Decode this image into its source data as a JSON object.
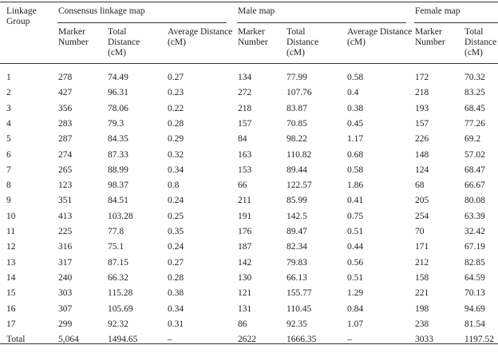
{
  "table": {
    "header": {
      "row_label": "Linkage Group",
      "groups": [
        "Consensus linkage map",
        "Male map",
        "Female map"
      ],
      "columns": [
        "Marker Number",
        "Total Distance (cM)",
        "Average Distance (cM)",
        "Marker Number",
        "Total Distance (cM)",
        "Average Distance (cM)",
        "Marker Number",
        "Total Distance (cM)"
      ]
    },
    "rows": [
      [
        "1",
        "278",
        "74.49",
        "0.27",
        "134",
        "77.99",
        "0.58",
        "172",
        "70.32"
      ],
      [
        "2",
        "427",
        "96.31",
        "0.23",
        "272",
        "107.76",
        "0.4",
        "218",
        "83.25"
      ],
      [
        "3",
        "356",
        "78.06",
        "0.22",
        "218",
        "83.87",
        "0.38",
        "193",
        "68.45"
      ],
      [
        "4",
        "283",
        "79.3",
        "0.28",
        "157",
        "70.85",
        "0.45",
        "157",
        "77.26"
      ],
      [
        "5",
        "287",
        "84.35",
        "0.29",
        "84",
        "98.22",
        "1.17",
        "226",
        "69.2"
      ],
      [
        "6",
        "274",
        "87.33",
        "0.32",
        "163",
        "110.82",
        "0.68",
        "148",
        "57.02"
      ],
      [
        "7",
        "265",
        "88.99",
        "0.34",
        "153",
        "89.44",
        "0.58",
        "124",
        "68.47"
      ],
      [
        "8",
        "123",
        "98.37",
        "0.8",
        "66",
        "122.57",
        "1.86",
        "68",
        "66.67"
      ],
      [
        "9",
        "351",
        "84.51",
        "0.24",
        "211",
        "85.99",
        "0.41",
        "205",
        "80.08"
      ],
      [
        "10",
        "413",
        "103.28",
        "0.25",
        "191",
        "142.5",
        "0.75",
        "254",
        "63.39"
      ],
      [
        "11",
        "225",
        "77.8",
        "0.35",
        "176",
        "89.47",
        "0.51",
        "70",
        "32.42"
      ],
      [
        "12",
        "316",
        "75.1",
        "0.24",
        "187",
        "82.34",
        "0.44",
        "171",
        "67.19"
      ],
      [
        "13",
        "317",
        "87.15",
        "0.27",
        "142",
        "79.83",
        "0.56",
        "212",
        "82.85"
      ],
      [
        "14",
        "240",
        "66.32",
        "0.28",
        "130",
        "66.13",
        "0.51",
        "158",
        "64.59"
      ],
      [
        "15",
        "303",
        "115.28",
        "0.38",
        "121",
        "155.77",
        "1.29",
        "221",
        "70.13"
      ],
      [
        "16",
        "307",
        "105.69",
        "0.34",
        "131",
        "110.45",
        "0.84",
        "198",
        "94.69"
      ],
      [
        "17",
        "299",
        "92.32",
        "0.31",
        "86",
        "92.35",
        "1.07",
        "238",
        "81.54"
      ],
      [
        "Total",
        "5,064",
        "1494.65",
        "–",
        "2622",
        "1666.35",
        "–",
        "3033",
        "1197.52"
      ]
    ]
  }
}
